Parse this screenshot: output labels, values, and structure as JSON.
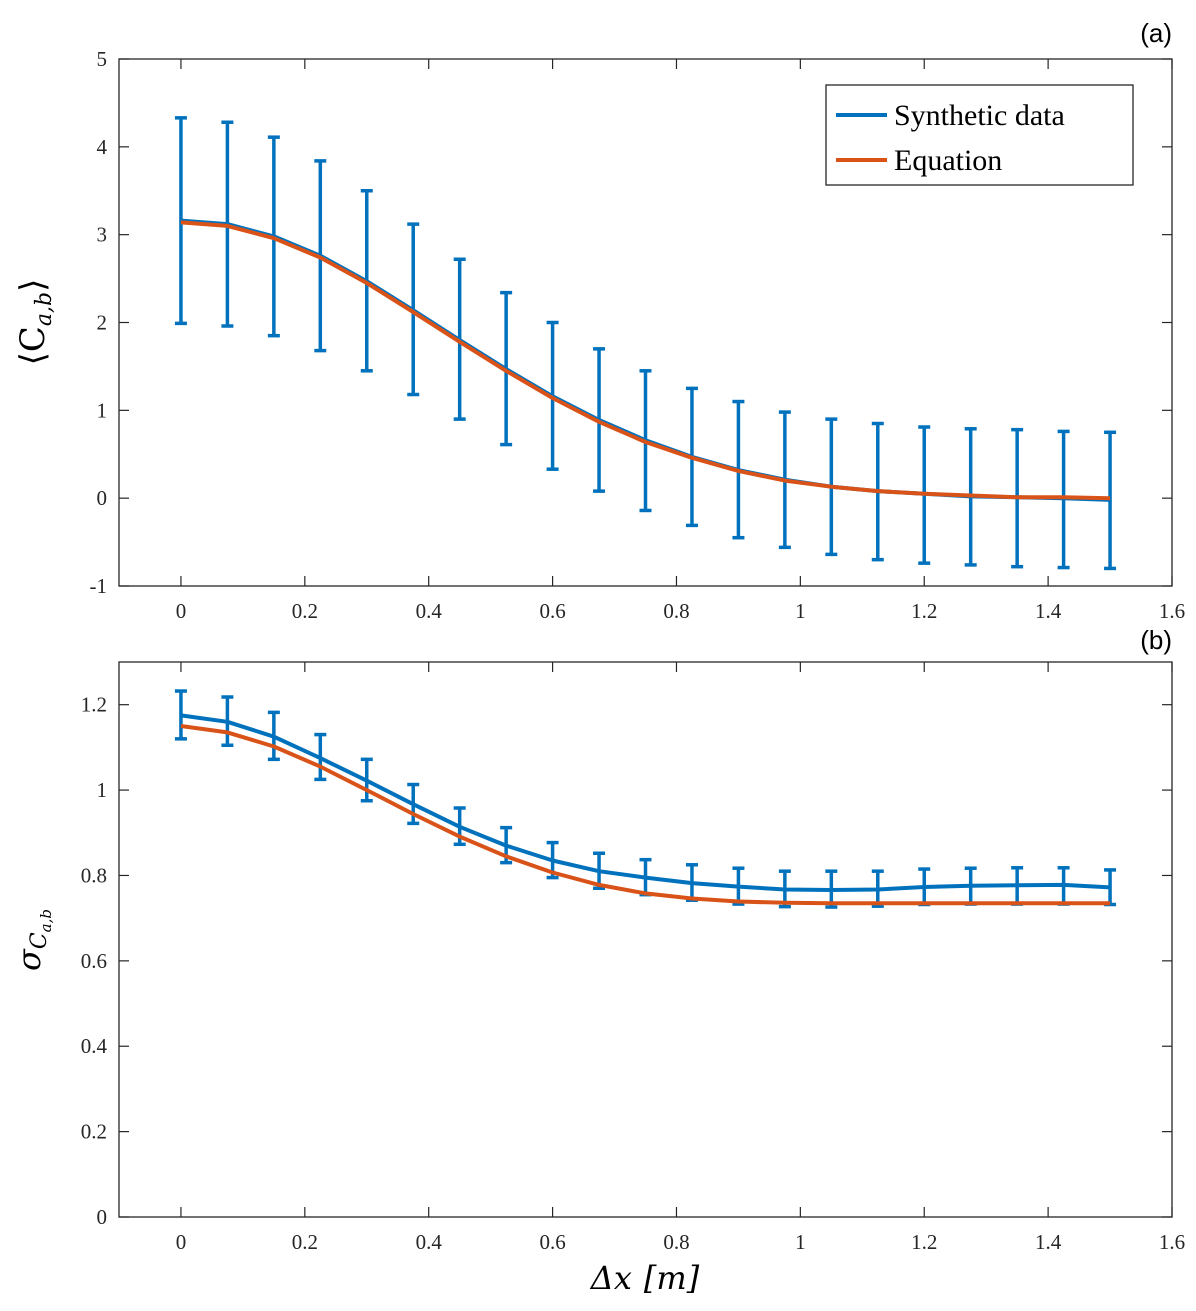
{
  "colors": {
    "synthetic": "#0072BD",
    "equation": "#D95319",
    "axis": "#262626"
  },
  "chart_data": [
    {
      "panel_label": "(a)",
      "type": "line",
      "title": "",
      "xlabel": "",
      "ylabel": {
        "main": "⟨C",
        "sub": "a,b",
        "close": "⟩"
      },
      "xlim": [
        -0.1,
        1.6
      ],
      "ylim": [
        -1,
        5
      ],
      "xticks": [
        0,
        0.2,
        0.4,
        0.6,
        0.8,
        1,
        1.2,
        1.4,
        1.6
      ],
      "xtick_labels": [
        "0",
        "0.2",
        "0.4",
        "0.6",
        "0.8",
        "1",
        "1.2",
        "1.4",
        "1.6"
      ],
      "yticks": [
        -1,
        0,
        1,
        2,
        3,
        4,
        5
      ],
      "ytick_labels": [
        "-1",
        "0",
        "1",
        "2",
        "3",
        "4",
        "5"
      ],
      "legend": {
        "position": "top-right",
        "entries": [
          "Synthetic data",
          "Equation"
        ]
      },
      "x": [
        0,
        0.075,
        0.15,
        0.225,
        0.3,
        0.375,
        0.45,
        0.525,
        0.6,
        0.675,
        0.75,
        0.825,
        0.9,
        0.975,
        1.05,
        1.125,
        1.2,
        1.275,
        1.35,
        1.425,
        1.5
      ],
      "series": [
        {
          "name": "Synthetic data",
          "values": [
            3.16,
            3.12,
            2.98,
            2.76,
            2.47,
            2.14,
            1.8,
            1.47,
            1.16,
            0.89,
            0.66,
            0.47,
            0.32,
            0.21,
            0.13,
            0.08,
            0.05,
            0.02,
            0.01,
            0.0,
            -0.02
          ],
          "error_low": [
            1.99,
            1.96,
            1.85,
            1.68,
            1.45,
            1.18,
            0.9,
            0.61,
            0.33,
            0.08,
            -0.14,
            -0.31,
            -0.45,
            -0.56,
            -0.64,
            -0.7,
            -0.74,
            -0.76,
            -0.78,
            -0.79,
            -0.8
          ],
          "error_high": [
            4.33,
            4.28,
            4.11,
            3.84,
            3.5,
            3.12,
            2.72,
            2.34,
            2.0,
            1.7,
            1.45,
            1.25,
            1.1,
            0.98,
            0.9,
            0.85,
            0.81,
            0.79,
            0.78,
            0.76,
            0.75
          ]
        },
        {
          "name": "Equation",
          "values": [
            3.14,
            3.1,
            2.96,
            2.74,
            2.45,
            2.12,
            1.78,
            1.45,
            1.14,
            0.87,
            0.64,
            0.46,
            0.31,
            0.2,
            0.13,
            0.08,
            0.05,
            0.03,
            0.01,
            0.01,
            0.0
          ]
        }
      ]
    },
    {
      "panel_label": "(b)",
      "type": "line",
      "title": "",
      "xlabel": {
        "main": "Δx",
        "bracket": "[m]"
      },
      "ylabel": {
        "main": "σ",
        "sub": "C",
        "subsub": "a,b"
      },
      "xlim": [
        -0.1,
        1.6
      ],
      "ylim": [
        0,
        1.3
      ],
      "xticks": [
        0,
        0.2,
        0.4,
        0.6,
        0.8,
        1,
        1.2,
        1.4,
        1.6
      ],
      "xtick_labels": [
        "0",
        "0.2",
        "0.4",
        "0.6",
        "0.8",
        "1",
        "1.2",
        "1.4",
        "1.6"
      ],
      "yticks": [
        0,
        0.2,
        0.4,
        0.6,
        0.8,
        1,
        1.2
      ],
      "ytick_labels": [
        "0",
        "0.2",
        "0.4",
        "0.6",
        "0.8",
        "1",
        "1.2"
      ],
      "legend": null,
      "x": [
        0,
        0.075,
        0.15,
        0.225,
        0.3,
        0.375,
        0.45,
        0.525,
        0.6,
        0.675,
        0.75,
        0.825,
        0.9,
        0.975,
        1.05,
        1.125,
        1.2,
        1.275,
        1.35,
        1.425,
        1.5
      ],
      "series": [
        {
          "name": "Synthetic data",
          "values": [
            1.175,
            1.16,
            1.125,
            1.075,
            1.022,
            0.967,
            0.914,
            0.87,
            0.835,
            0.81,
            0.795,
            0.782,
            0.774,
            0.767,
            0.766,
            0.767,
            0.773,
            0.776,
            0.777,
            0.778,
            0.772
          ],
          "error_low": [
            1.12,
            1.105,
            1.072,
            1.025,
            0.975,
            0.922,
            0.873,
            0.83,
            0.795,
            0.77,
            0.755,
            0.742,
            0.733,
            0.727,
            0.726,
            0.728,
            0.732,
            0.733,
            0.733,
            0.733,
            0.732
          ],
          "error_high": [
            1.232,
            1.218,
            1.182,
            1.13,
            1.072,
            1.013,
            0.958,
            0.912,
            0.877,
            0.852,
            0.837,
            0.825,
            0.817,
            0.81,
            0.81,
            0.81,
            0.815,
            0.817,
            0.818,
            0.818,
            0.813
          ]
        },
        {
          "name": "Equation",
          "values": [
            1.15,
            1.135,
            1.102,
            1.055,
            1.0,
            0.944,
            0.891,
            0.845,
            0.807,
            0.778,
            0.758,
            0.746,
            0.739,
            0.736,
            0.735,
            0.735,
            0.735,
            0.735,
            0.735,
            0.735,
            0.735
          ]
        }
      ]
    }
  ]
}
